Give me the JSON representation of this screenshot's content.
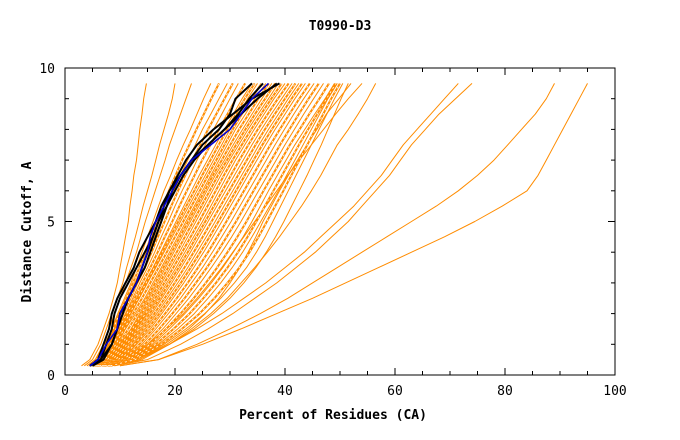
{
  "chart_data": {
    "type": "line",
    "title": "T0990-D3",
    "xlabel": "Percent of Residues (CA)",
    "ylabel": "Distance Cutoff, A",
    "xlim": [
      0,
      100
    ],
    "ylim": [
      0,
      10
    ],
    "xticks": [
      0,
      20,
      40,
      60,
      80,
      100
    ],
    "yticks": [
      0,
      5,
      10
    ],
    "grid": false,
    "legend": "none",
    "colors": {
      "background_models": "#ff8c00",
      "highlight_black": "#000000",
      "highlight_blue": "#0000cc"
    },
    "series_y": [
      0.3,
      0.5,
      1.0,
      1.5,
      2.0,
      2.5,
      3.0,
      3.5,
      4.0,
      4.5,
      5.0,
      5.5,
      6.0,
      6.5,
      7.0,
      7.5,
      8.0,
      8.5,
      9.0,
      9.5
    ],
    "orange_series": [
      [
        3,
        4.5,
        6,
        7,
        8,
        8.8,
        9.5,
        10,
        10.5,
        11,
        11.5,
        11.8,
        12.2,
        12.5,
        13,
        13.3,
        13.6,
        14,
        14.3,
        14.8
      ],
      [
        3.5,
        5,
        6.5,
        7.5,
        8.5,
        9.5,
        10.5,
        11.2,
        12,
        12.8,
        13.5,
        14.2,
        15,
        15.8,
        16.5,
        17.2,
        18,
        18.8,
        19.5,
        20
      ],
      [
        4,
        5.5,
        7,
        8,
        9,
        10,
        11,
        12,
        13,
        13.8,
        14.6,
        15.5,
        16.4,
        17.3,
        18.2,
        19,
        20,
        21,
        22,
        23
      ],
      [
        4,
        5.5,
        7.2,
        8.5,
        9.6,
        10.8,
        12,
        13,
        14,
        15,
        16,
        17,
        18,
        19.2,
        20.3,
        21.5,
        22.8,
        24,
        25.2,
        26.5
      ],
      [
        4.5,
        6,
        7.5,
        9,
        10.2,
        11.5,
        12.7,
        14,
        15.2,
        16.3,
        17.4,
        18.6,
        19.8,
        21,
        22.3,
        23.7,
        25,
        26.5,
        28,
        29.5
      ],
      [
        4.5,
        6.5,
        8,
        9.5,
        11,
        12.3,
        13.6,
        15,
        16.3,
        17.5,
        18.8,
        20,
        21.3,
        22.7,
        24,
        25.5,
        27,
        28.5,
        30,
        31.5
      ],
      [
        5,
        7,
        8.5,
        10,
        11.5,
        13,
        14.5,
        16,
        17.4,
        18.8,
        20.2,
        21.6,
        23,
        24.4,
        25.9,
        27.4,
        29,
        30.6,
        32.2,
        34
      ],
      [
        5,
        7,
        9,
        10.5,
        12,
        13.5,
        15,
        16.5,
        18,
        19.5,
        21,
        22.5,
        24,
        25.5,
        27,
        28.5,
        30,
        31.5,
        33.2,
        35
      ],
      [
        5,
        7.5,
        9.5,
        11,
        12.8,
        14.5,
        16,
        17.5,
        19,
        20.5,
        22,
        23.5,
        25,
        26.5,
        28,
        29.5,
        31,
        32.8,
        34.5,
        36.5
      ],
      [
        5.5,
        8,
        10,
        12,
        13.6,
        15.2,
        16.8,
        18.3,
        19.8,
        21.3,
        22.8,
        24.3,
        25.8,
        27.3,
        29,
        30.6,
        32.3,
        34,
        35.8,
        37.6
      ],
      [
        5.5,
        8.5,
        10.5,
        12.5,
        14.3,
        16,
        17.6,
        19.2,
        20.8,
        22.3,
        23.8,
        25.3,
        26.8,
        28.3,
        29.9,
        31.6,
        33.3,
        35.1,
        37,
        38.8
      ],
      [
        6,
        9,
        11,
        13,
        15,
        16.8,
        18.5,
        20.2,
        21.8,
        23.4,
        25,
        26.5,
        28,
        29.5,
        31,
        32.7,
        34.4,
        36.2,
        38,
        40
      ],
      [
        6,
        9.5,
        11.5,
        13.8,
        15.8,
        17.6,
        19.4,
        21.1,
        22.8,
        24.4,
        26,
        27.6,
        29.2,
        30.8,
        32.4,
        34,
        35.7,
        37.5,
        39.4,
        41.3
      ],
      [
        6.5,
        10,
        12.3,
        14.6,
        16.7,
        18.6,
        20.5,
        22.3,
        24,
        25.7,
        27.3,
        28.9,
        30.5,
        32.1,
        33.7,
        35.3,
        37,
        38.8,
        40.6,
        42.5
      ],
      [
        7,
        10.5,
        13,
        15.5,
        17.6,
        19.6,
        21.6,
        23.4,
        25.2,
        26.9,
        28.5,
        30.1,
        31.7,
        33.3,
        34.9,
        36.5,
        38.2,
        40,
        41.8,
        43.7
      ],
      [
        7,
        11,
        14,
        16.5,
        18.8,
        21,
        23,
        25,
        26.8,
        28.5,
        30.2,
        31.8,
        33.4,
        35,
        36.6,
        38.2,
        39.9,
        41.6,
        43.4,
        45.3
      ],
      [
        7.5,
        11.5,
        15,
        17.8,
        20.2,
        22.5,
        24.6,
        26.6,
        28.5,
        30.3,
        32,
        33.6,
        35.2,
        36.8,
        38.4,
        40,
        41.7,
        43.4,
        45.2,
        47
      ],
      [
        8,
        12,
        16,
        19,
        21.8,
        24.3,
        26.6,
        28.7,
        30.6,
        32.4,
        34,
        35.5,
        37,
        38.6,
        40.2,
        41.8,
        43.6,
        45.4,
        47.3,
        49
      ],
      [
        8,
        12.5,
        17,
        20.5,
        23.5,
        26,
        28.3,
        30.4,
        32.3,
        34,
        35.6,
        37.2,
        38.8,
        40.3,
        41.8,
        43.3,
        44.8,
        46.3,
        47.8,
        49.5
      ],
      [
        8.5,
        13,
        18,
        22,
        25.4,
        28.3,
        30.8,
        33,
        34.8,
        36.4,
        37.8,
        39.2,
        40.6,
        42,
        43.4,
        44.8,
        46.2,
        47.6,
        49,
        50.5
      ],
      [
        9,
        14,
        19,
        23.5,
        27,
        30,
        32.5,
        34.7,
        36.6,
        38.3,
        39.8,
        41.2,
        42.6,
        44,
        45.3,
        46.6,
        47.8,
        49,
        50.2,
        51.5
      ],
      [
        7,
        13,
        18.5,
        22.5,
        25.5,
        28,
        30,
        31.8,
        33.3,
        34.7,
        36,
        37.5,
        39,
        40.6,
        42.3,
        44,
        45.8,
        47.5,
        49.8,
        52
      ],
      [
        6,
        11,
        15,
        18.5,
        21.5,
        24,
        26.3,
        28.5,
        30.5,
        32.5,
        34.5,
        36.5,
        38.5,
        40.5,
        42.6,
        44.8,
        47,
        49.2,
        51.5,
        54
      ],
      [
        8,
        13.5,
        19,
        23,
        26.5,
        29.5,
        32,
        34.5,
        36.8,
        39,
        41,
        43,
        44.8,
        46.5,
        48,
        49.5,
        51.5,
        53.3,
        55,
        56.5
      ],
      [
        8,
        13,
        19,
        24,
        28.5,
        32.5,
        36.5,
        40,
        43.5,
        46.5,
        49.5,
        52.5,
        55,
        57.5,
        59.5,
        61.5,
        64,
        66.5,
        69,
        71.5
      ],
      [
        9,
        15,
        21,
        26,
        30.5,
        34.5,
        38.5,
        42,
        45.5,
        48.5,
        51.5,
        54,
        56.5,
        59,
        61,
        63,
        65.5,
        68,
        71,
        74
      ],
      [
        10,
        17,
        24,
        30,
        35.5,
        40.5,
        45,
        49.5,
        54,
        58.5,
        63,
        67.5,
        71.5,
        75,
        78,
        80.5,
        83,
        85.5,
        87.5,
        89
      ],
      [
        10,
        17,
        25,
        32,
        38.5,
        45,
        51,
        57,
        63,
        69,
        74.5,
        79.5,
        84,
        86,
        87.5,
        89,
        90.5,
        92,
        93.5,
        95
      ]
    ],
    "black_series": [
      [
        4.5,
        6,
        7,
        8,
        8.5,
        9.5,
        11,
        12.5,
        13.5,
        15,
        16.5,
        17.5,
        19,
        21,
        23,
        25,
        28,
        30,
        31,
        34
      ],
      [
        5,
        6.5,
        7.5,
        8.5,
        9,
        10,
        11.5,
        13,
        14.5,
        16,
        17,
        18.5,
        19.5,
        21,
        23,
        26,
        29,
        31.5,
        33.5,
        36
      ],
      [
        4.5,
        6.5,
        8.5,
        9.5,
        10.5,
        11.5,
        13,
        14.5,
        15.5,
        16.5,
        17.5,
        18.5,
        20,
        21.5,
        23.5,
        26,
        29,
        32,
        35,
        38.5
      ],
      [
        5,
        7,
        8.5,
        9.5,
        10,
        11.5,
        13,
        14,
        15,
        16,
        17,
        18,
        19,
        20.5,
        22,
        24,
        27,
        30.5,
        34,
        39
      ]
    ],
    "blue_series": [
      4.5,
      6,
      7.5,
      9.5,
      10,
      11.5,
      13,
      14,
      15,
      15.5,
      16.5,
      18,
      19.5,
      21,
      23,
      26.5,
      30,
      32,
      34,
      37
    ]
  }
}
